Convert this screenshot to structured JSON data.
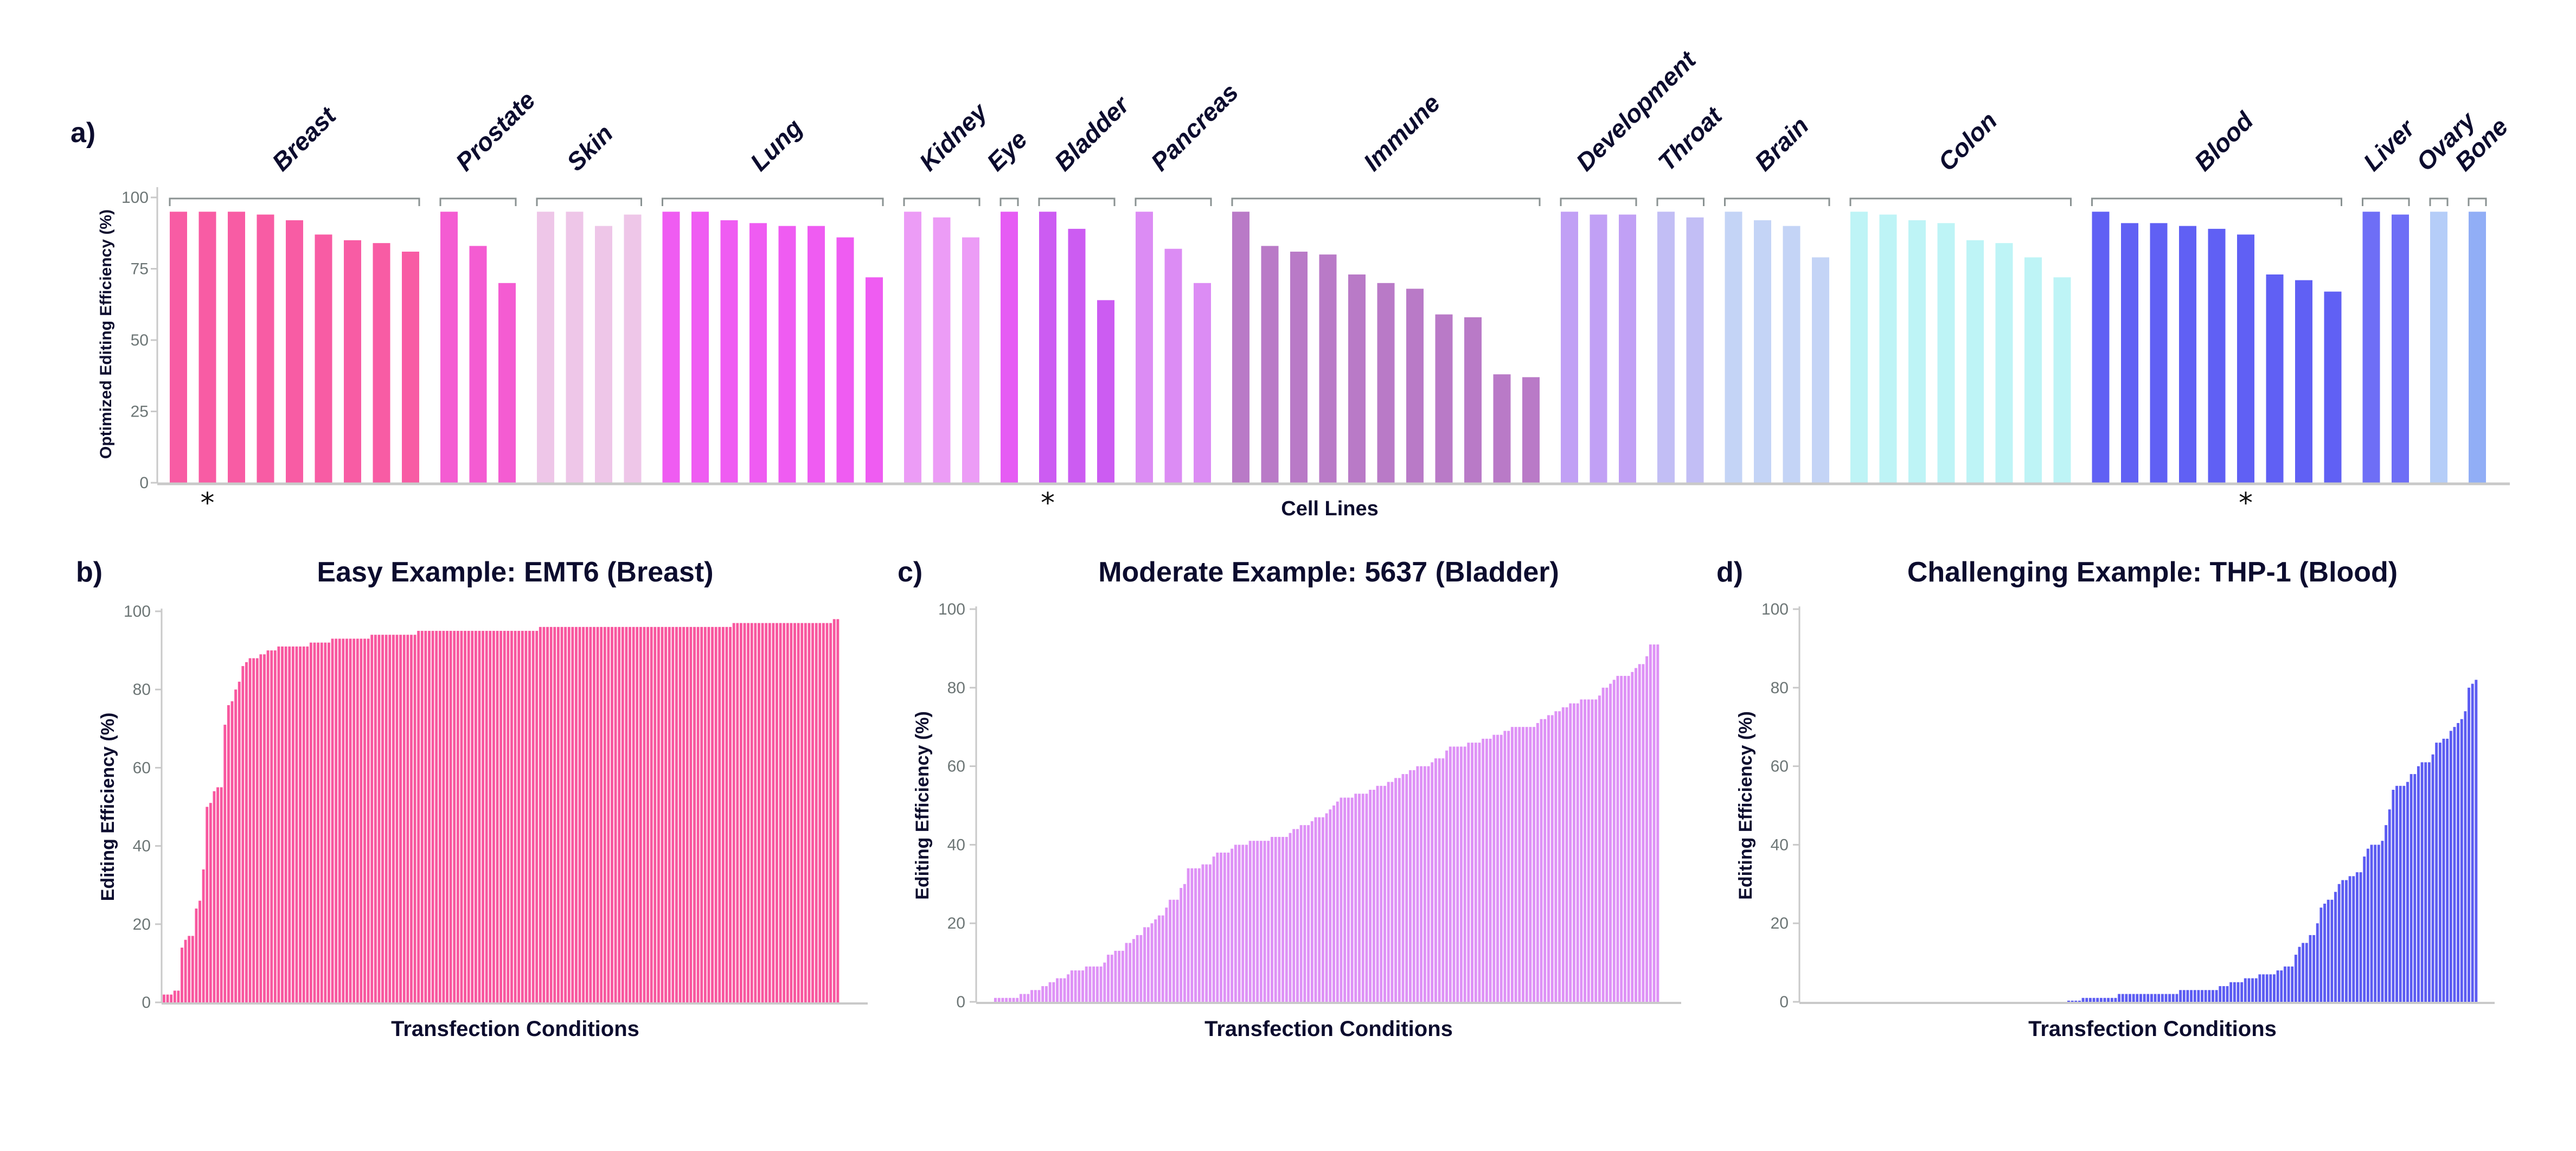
{
  "chart_data": [
    {
      "panel": "a)",
      "type": "bar",
      "title": "",
      "xlabel": "Cell Lines",
      "ylabel": "Optimized Editing Efficiency (%)",
      "ylim": [
        0,
        100
      ],
      "yticks": [
        0,
        25,
        50,
        75,
        100
      ],
      "grid": false,
      "marker_label": "*",
      "groups": [
        {
          "name": "Breast",
          "color": "#F85CA4",
          "values": [
            95,
            95,
            95,
            94,
            92,
            87,
            85,
            84,
            81
          ],
          "marked": [
            1
          ]
        },
        {
          "name": "Prostate",
          "color": "#F45CD2",
          "values": [
            95,
            83,
            70
          ]
        },
        {
          "name": "Skin",
          "color": "#EEC6E8",
          "values": [
            95,
            95,
            90,
            94
          ]
        },
        {
          "name": "Lung",
          "color": "#EF5CF2",
          "values": [
            95,
            95,
            92,
            91,
            90,
            90,
            86,
            72
          ]
        },
        {
          "name": "Kidney",
          "color": "#EC9CF6",
          "values": [
            95,
            93,
            86
          ]
        },
        {
          "name": "Eye",
          "color": "#E65CF4",
          "values": [
            95
          ]
        },
        {
          "name": "Bladder",
          "color": "#CC5CF2",
          "values": [
            95,
            89,
            64
          ],
          "marked": [
            0
          ]
        },
        {
          "name": "Pancreas",
          "color": "#DC8CF4",
          "values": [
            95,
            82,
            70
          ]
        },
        {
          "name": "Immune",
          "color": "#B97AC7",
          "values": [
            95,
            83,
            81,
            80,
            73,
            70,
            68,
            59,
            58,
            38,
            37
          ]
        },
        {
          "name": "Development",
          "color": "#C1A0F5",
          "values": [
            95,
            94,
            94
          ]
        },
        {
          "name": "Throat",
          "color": "#C2BEF5",
          "values": [
            95,
            93
          ]
        },
        {
          "name": "Brain",
          "color": "#C4D4F6",
          "values": [
            95,
            92,
            90,
            79
          ]
        },
        {
          "name": "Colon",
          "color": "#BEF4F6",
          "values": [
            95,
            94,
            92,
            91,
            85,
            84,
            79,
            72
          ]
        },
        {
          "name": "Blood",
          "color": "#6060F4",
          "values": [
            95,
            91,
            91,
            90,
            89,
            87,
            73,
            71,
            67
          ],
          "marked": [
            5
          ]
        },
        {
          "name": "Liver",
          "color": "#6E6EF6",
          "values": [
            95,
            94
          ]
        },
        {
          "name": "Ovary",
          "color": "#B5CDF8",
          "values": [
            95
          ]
        },
        {
          "name": "Bone",
          "color": "#91AEF6",
          "values": [
            95
          ]
        }
      ]
    },
    {
      "panel": "b)",
      "type": "bar",
      "title": "Easy Example: EMT6 (Breast)",
      "xlabel": "Transfection Conditions",
      "ylabel": "Editing Efficiency (%)",
      "ylim": [
        0,
        100
      ],
      "yticks": [
        0,
        20,
        40,
        60,
        80,
        100
      ],
      "color": "#F8579F",
      "values": [
        2,
        2,
        2,
        3,
        3,
        14,
        16,
        17,
        17,
        24,
        26,
        34,
        50,
        51,
        54,
        55,
        55,
        71,
        76,
        77,
        80,
        82,
        86,
        87,
        88,
        88,
        88,
        89,
        89,
        90,
        90,
        90,
        91,
        91,
        91,
        91,
        91,
        91,
        91,
        91,
        91,
        92,
        92,
        92,
        92,
        92,
        92,
        93,
        93,
        93,
        93,
        93,
        93,
        93,
        93,
        93,
        93,
        93,
        94,
        94,
        94,
        94,
        94,
        94,
        94,
        94,
        94,
        94,
        94,
        94,
        94,
        95,
        95,
        95,
        95,
        95,
        95,
        95,
        95,
        95,
        95,
        95,
        95,
        95,
        95,
        95,
        95,
        95,
        95,
        95,
        95,
        95,
        95,
        95,
        95,
        95,
        95,
        95,
        95,
        95,
        95,
        95,
        95,
        95,
        95,
        96,
        96,
        96,
        96,
        96,
        96,
        96,
        96,
        96,
        96,
        96,
        96,
        96,
        96,
        96,
        96,
        96,
        96,
        96,
        96,
        96,
        96,
        96,
        96,
        96,
        96,
        96,
        96,
        96,
        96,
        96,
        96,
        96,
        96,
        96,
        96,
        96,
        96,
        96,
        96,
        96,
        96,
        96,
        96,
        96,
        96,
        96,
        96,
        96,
        96,
        96,
        96,
        96,
        96,
        97,
        97,
        97,
        97,
        97,
        97,
        97,
        97,
        97,
        97,
        97,
        97,
        97,
        97,
        97,
        97,
        97,
        97,
        97,
        97,
        97,
        97,
        97,
        97,
        97,
        97,
        97,
        97,
        98,
        98
      ]
    },
    {
      "panel": "c)",
      "type": "bar",
      "title": "Moderate Example: 5637 (Bladder)",
      "xlabel": "Transfection Conditions",
      "ylabel": "Editing Efficiency (%)",
      "ylim": [
        0,
        100
      ],
      "yticks": [
        0,
        20,
        40,
        60,
        80,
        100
      ],
      "color": "#DE92F6",
      "values": [
        1,
        1,
        1,
        1,
        1,
        1,
        1,
        2,
        2,
        2,
        3,
        3,
        3,
        4,
        4,
        5,
        5,
        6,
        6,
        6,
        7,
        8,
        8,
        8,
        8,
        9,
        9,
        9,
        9,
        9,
        10,
        12,
        12,
        13,
        13,
        13,
        15,
        15,
        16,
        17,
        17,
        19,
        19,
        20,
        21,
        22,
        22,
        24,
        26,
        26,
        26,
        29,
        30,
        34,
        34,
        34,
        34,
        35,
        35,
        35,
        37,
        38,
        38,
        38,
        38,
        39,
        40,
        40,
        40,
        40,
        41,
        41,
        41,
        41,
        41,
        41,
        42,
        42,
        42,
        42,
        42,
        43,
        44,
        44,
        45,
        45,
        45,
        46,
        47,
        47,
        47,
        48,
        49,
        50,
        51,
        52,
        52,
        52,
        52,
        53,
        53,
        53,
        53,
        54,
        54,
        55,
        55,
        55,
        56,
        56,
        57,
        57,
        58,
        58,
        59,
        59,
        60,
        60,
        60,
        60,
        61,
        62,
        62,
        62,
        64,
        65,
        65,
        65,
        65,
        65,
        66,
        66,
        66,
        66,
        67,
        67,
        67,
        68,
        68,
        68,
        69,
        69,
        70,
        70,
        70,
        70,
        70,
        70,
        70,
        71,
        72,
        72,
        73,
        73,
        74,
        74,
        75,
        75,
        76,
        76,
        76,
        77,
        77,
        77,
        77,
        77,
        78,
        80,
        80,
        81,
        82,
        83,
        83,
        83,
        83,
        84,
        85,
        86,
        86,
        88,
        91,
        91,
        91
      ]
    },
    {
      "panel": "d)",
      "type": "bar",
      "title": "Challenging Example: THP-1 (Blood)",
      "xlabel": "Transfection Conditions",
      "ylabel": "Editing Efficiency (%)",
      "ylim": [
        0,
        100
      ],
      "yticks": [
        0,
        20,
        40,
        60,
        80,
        100
      ],
      "color": "#5C5CF2",
      "values": [
        0,
        0,
        0,
        0,
        0,
        0,
        0,
        0,
        0,
        0,
        0,
        0,
        0,
        0,
        0,
        0,
        0,
        0,
        0,
        0,
        0,
        0,
        0,
        0,
        0,
        0,
        0,
        0,
        0,
        0,
        0,
        0,
        0,
        0,
        0,
        0,
        0,
        0,
        0,
        0,
        0,
        0,
        0,
        0,
        0,
        0,
        0,
        0,
        0,
        0,
        0,
        0,
        0,
        0,
        0,
        0,
        0,
        0,
        0,
        0,
        0,
        0,
        0,
        0,
        0,
        0,
        0,
        0,
        0,
        0,
        0,
        0,
        0,
        0,
        0.3,
        0.3,
        0.3,
        0.3,
        1,
        1,
        1,
        1,
        1,
        1,
        1,
        1,
        1,
        1,
        2,
        2,
        2,
        2,
        2,
        2,
        2,
        2,
        2,
        2,
        2,
        2,
        2,
        2,
        2,
        2,
        2,
        3,
        3,
        3,
        3,
        3,
        3,
        3,
        3,
        3,
        3,
        3,
        4,
        4,
        4,
        5,
        5,
        5,
        5,
        6,
        6,
        6,
        6,
        7,
        7,
        7,
        7,
        7,
        8,
        8,
        9,
        9,
        9,
        12,
        14,
        15,
        15,
        17,
        17,
        20,
        24,
        25,
        26,
        26,
        28,
        30,
        31,
        31,
        32,
        32,
        33,
        33,
        37,
        39,
        40,
        40,
        40,
        41,
        45,
        49,
        54,
        55,
        55,
        55,
        56,
        58,
        58,
        60,
        61,
        61,
        61,
        63,
        66,
        66,
        67,
        67,
        69,
        70,
        71,
        72,
        74,
        80,
        81,
        82
      ]
    }
  ]
}
